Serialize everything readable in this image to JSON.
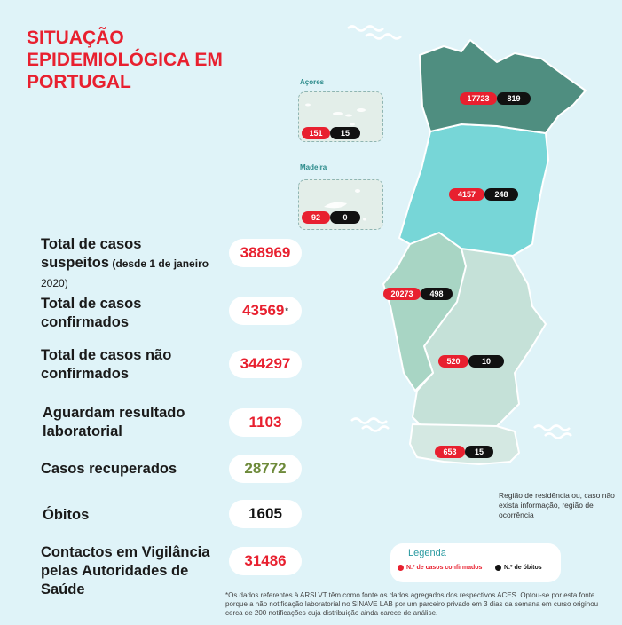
{
  "title": "SITUAÇÃO EPIDEMIOLÓGICA EM PORTUGAL",
  "islands": {
    "azores": {
      "label": "Açores",
      "confirmed": "151",
      "deaths": "15"
    },
    "madeira": {
      "label": "Madeira",
      "confirmed": "92",
      "deaths": "0"
    }
  },
  "regions": [
    {
      "name": "north",
      "confirmed": "17723",
      "deaths": "819",
      "color": "#4f8e80"
    },
    {
      "name": "centre",
      "confirmed": "4157",
      "deaths": "248",
      "color": "#77d6d7"
    },
    {
      "name": "lisbon",
      "confirmed": "20273",
      "deaths": "498",
      "color": "#a8d5c4"
    },
    {
      "name": "alentejo",
      "confirmed": "520",
      "deaths": "10",
      "color": "#c5e1d8"
    },
    {
      "name": "algarve",
      "confirmed": "653",
      "deaths": "15",
      "color": "#d4e8e2"
    }
  ],
  "stats": {
    "suspected": {
      "label_line1": "Total de casos",
      "label_line2": "suspeitos",
      "label_note": " (desde 1 de janeiro",
      "label_note2": "2020)",
      "value": "388969"
    },
    "confirmed": {
      "label_line1": "Total de casos",
      "label_line2": "confirmados",
      "value": "43569",
      "mark": "*"
    },
    "not_confirmed": {
      "label_line1": "Total de casos não",
      "label_line2": "confirmados",
      "value": "344297"
    },
    "awaiting": {
      "label_line1": "Aguardam resultado",
      "label_line2": "laboratorial",
      "value": "1103"
    },
    "recovered": {
      "label": "Casos recuperados",
      "value": "28772"
    },
    "deaths": {
      "label": "Óbitos",
      "value": "1605"
    },
    "contacts": {
      "label_line1": "Contactos em Vigilância",
      "label_line2": "pelas Autoridades de",
      "label_line3": "Saúde",
      "value": "31486"
    }
  },
  "region_note": "Região de residência ou, caso não exista informação, região de ocorrência",
  "legend": {
    "title": "Legenda",
    "confirmed_label": "N.º de casos confirmados",
    "deaths_label": "N.º de óbitos",
    "confirmed_color": "#e8202f",
    "deaths_color": "#111111"
  },
  "footnote": "*Os dados referentes à ARSLVT têm como fonte os dados agregados dos respectivos ACES. Optou-se por esta fonte porque a não notificação laboratorial no SINAVE LAB por um parceiro privado em 3 dias da semana em curso originou cerca de 200 notificações cuja distribuição ainda carece de análise."
}
